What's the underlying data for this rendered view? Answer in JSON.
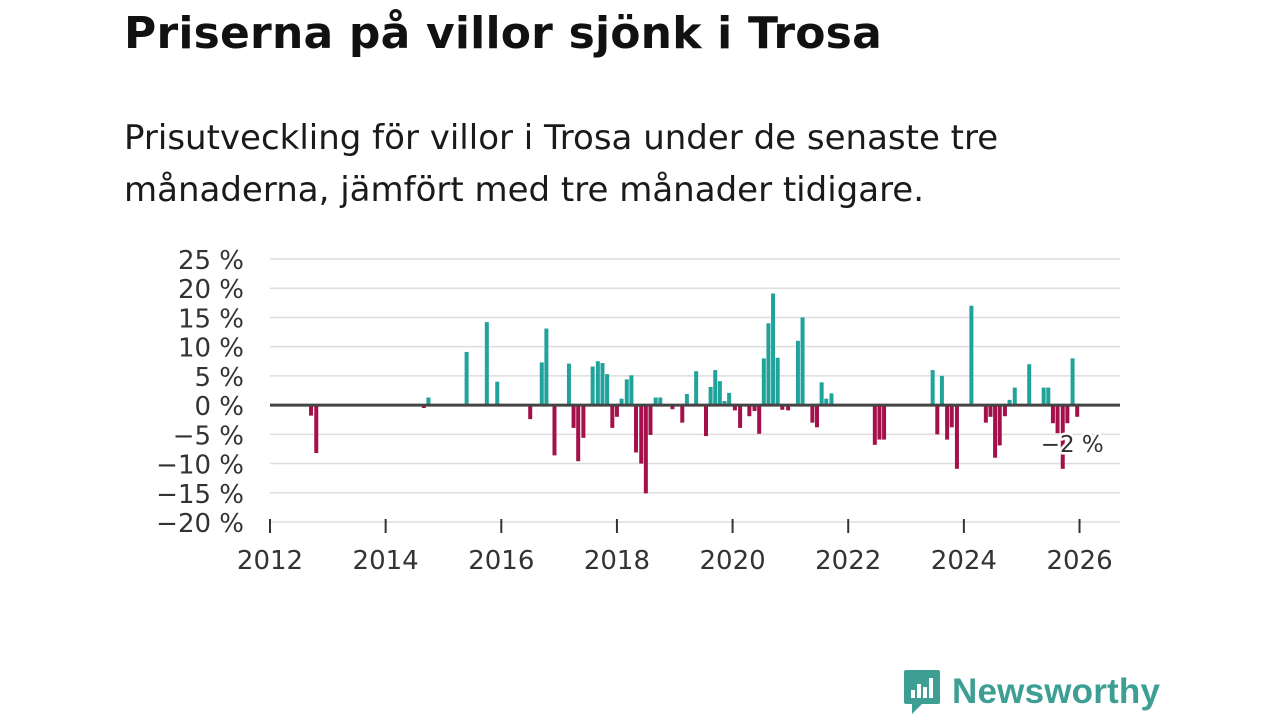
{
  "title": "Priserna på villor sjönk i Trosa",
  "subtitle": "Prisutveckling för villor i Trosa under de senaste tre månaderna, jämfört med tre månader tidigare.",
  "brand": "Newsworthy",
  "colors": {
    "positive": "#20a39a",
    "negative": "#a3104a",
    "grid": "#dddddd",
    "zero": "#444444"
  },
  "chart_data": {
    "type": "bar",
    "title": "Priserna på villor sjönk i Trosa",
    "xlabel": "",
    "ylabel": "",
    "xlim": [
      2012,
      2026.7
    ],
    "ylim": [
      -20,
      25
    ],
    "y_ticks": [
      25,
      20,
      15,
      10,
      5,
      0,
      -5,
      -10,
      -15,
      -20
    ],
    "y_tick_labels": [
      "25 %",
      "20 %",
      "15 %",
      "10 %",
      "5 %",
      "0 %",
      "−5 %",
      "−10 %",
      "−15 %",
      "−20 %"
    ],
    "x_ticks": [
      2012,
      2014,
      2016,
      2018,
      2020,
      2022,
      2024,
      2026
    ],
    "x_tick_labels": [
      "2012",
      "2014",
      "2016",
      "2018",
      "2020",
      "2022",
      "2024",
      "2026"
    ],
    "annotation": {
      "x": 2025.83,
      "y": -2,
      "text": "−2 %"
    },
    "series": [
      {
        "name": "Prisutveckling",
        "x": [
          2012.71,
          2012.8,
          2014.66,
          2014.74,
          2015.4,
          2015.75,
          2015.93,
          2016.5,
          2016.7,
          2016.78,
          2016.92,
          2017.17,
          2017.25,
          2017.33,
          2017.42,
          2017.58,
          2017.67,
          2017.75,
          2017.83,
          2017.92,
          2018.0,
          2018.08,
          2018.17,
          2018.25,
          2018.33,
          2018.42,
          2018.5,
          2018.58,
          2018.67,
          2018.75,
          2018.96,
          2019.13,
          2019.21,
          2019.37,
          2019.54,
          2019.62,
          2019.7,
          2019.78,
          2019.86,
          2019.94,
          2020.04,
          2020.13,
          2020.29,
          2020.38,
          2020.46,
          2020.54,
          2020.62,
          2020.7,
          2020.78,
          2020.86,
          2020.96,
          2021.13,
          2021.21,
          2021.38,
          2021.46,
          2021.54,
          2021.62,
          2021.71,
          2022.46,
          2022.54,
          2022.62,
          2023.46,
          2023.54,
          2023.62,
          2023.71,
          2023.79,
          2023.88,
          2024.13,
          2024.38,
          2024.46,
          2024.54,
          2024.62,
          2024.71,
          2024.79,
          2024.88,
          2025.13,
          2025.38,
          2025.46,
          2025.54,
          2025.62,
          2025.71,
          2025.79,
          2025.88,
          2025.96
        ],
        "values": [
          -1.8,
          -8.2,
          -0.5,
          1.3,
          9.1,
          14.2,
          4.0,
          -2.4,
          7.3,
          13.1,
          -8.6,
          7.1,
          -3.9,
          -9.6,
          -5.6,
          6.6,
          7.5,
          7.2,
          5.3,
          -3.9,
          -2.0,
          1.1,
          4.4,
          5.1,
          -8.1,
          -10.0,
          -15.1,
          -5.1,
          1.3,
          1.3,
          -0.7,
          -3.0,
          1.9,
          5.8,
          -5.3,
          3.1,
          6.0,
          4.1,
          0.7,
          2.1,
          -0.9,
          -3.9,
          -1.9,
          -1.0,
          -4.9,
          8.0,
          14.0,
          19.1,
          8.1,
          -0.8,
          -0.9,
          11.0,
          15.0,
          -3.0,
          -3.8,
          3.9,
          1.1,
          2.0,
          -6.8,
          -5.9,
          -5.9,
          6.0,
          -5.0,
          5.0,
          -5.9,
          -3.8,
          -10.9,
          17.0,
          -3.0,
          -2.0,
          -9.0,
          -6.9,
          -1.9,
          0.9,
          3.0,
          7.0,
          3.0,
          3.0,
          -3.1,
          -4.8,
          -10.9,
          -3.1,
          8.0,
          -2.0
        ]
      }
    ]
  }
}
